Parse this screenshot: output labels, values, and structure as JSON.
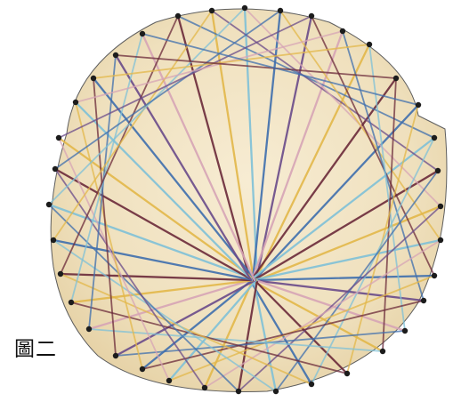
{
  "caption": "圖二",
  "thread_colors": {
    "board": "#f1e4c4",
    "nail": "#1c1c1c",
    "dark_red": "#6b2a3a",
    "yellow": "#e3b84a",
    "light_blue": "#7fc1d8",
    "blue": "#3f6fae",
    "purple": "#6a4b8a",
    "pink": "#d7a5b6",
    "gray": "#5e5e5e"
  }
}
